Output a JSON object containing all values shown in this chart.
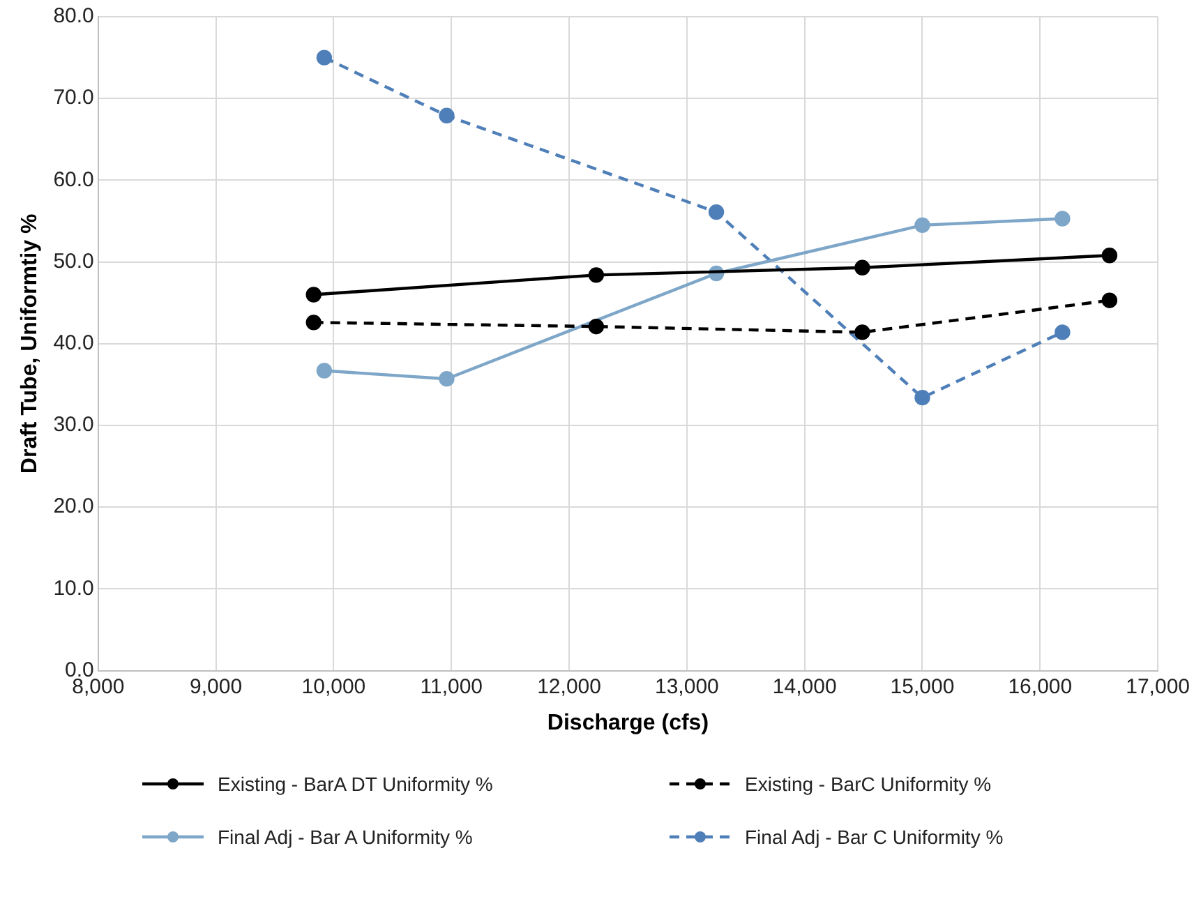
{
  "chart_data": {
    "type": "line",
    "xlabel": "Discharge (cfs)",
    "ylabel": "Draft Tube, Uniformtiy %",
    "xlim": [
      8000,
      17000
    ],
    "xticks": [
      {
        "value": 8000,
        "label": "8,000"
      },
      {
        "value": 9000,
        "label": "9,000"
      },
      {
        "value": 10000,
        "label": "10,000"
      },
      {
        "value": 11000,
        "label": "11,000"
      },
      {
        "value": 12000,
        "label": "12,000"
      },
      {
        "value": 13000,
        "label": "13,000"
      },
      {
        "value": 14000,
        "label": "14,000"
      },
      {
        "value": 15000,
        "label": "15,000"
      },
      {
        "value": 16000,
        "label": "16,000"
      },
      {
        "value": 17000,
        "label": "17,000"
      }
    ],
    "ylim": [
      0,
      80
    ],
    "yticks": [
      {
        "value": 0,
        "label": "0.0"
      },
      {
        "value": 10,
        "label": "10.0"
      },
      {
        "value": 20,
        "label": "20.0"
      },
      {
        "value": 30,
        "label": "30.0"
      },
      {
        "value": 40,
        "label": "40.0"
      },
      {
        "value": 50,
        "label": "50.0"
      },
      {
        "value": 60,
        "label": "60.0"
      },
      {
        "value": 70,
        "label": "70.0"
      },
      {
        "value": 80,
        "label": "80.0"
      }
    ],
    "grid": true,
    "legend": "bottom",
    "marker": "circle",
    "series": [
      {
        "name": "Existing - BarA DT Uniformity %",
        "color": "#000000",
        "line_style": "solid",
        "x": [
          9830,
          12230,
          14490,
          16590
        ],
        "values": [
          46.0,
          48.4,
          49.3,
          50.8
        ]
      },
      {
        "name": "Existing - BarC Uniformity %",
        "color": "#000000",
        "line_style": "dashed",
        "x": [
          9830,
          12230,
          14490,
          16590
        ],
        "values": [
          42.6,
          42.1,
          41.4,
          45.3
        ]
      },
      {
        "name": "Final Adj - Bar A Uniformity %",
        "color": "#7ea6c8",
        "line_style": "solid",
        "x": [
          9920,
          10960,
          13250,
          15000,
          16190
        ],
        "values": [
          36.7,
          35.7,
          48.6,
          54.5,
          55.3
        ]
      },
      {
        "name": "Final Adj - Bar C Uniformity %",
        "color": "#4f7fb8",
        "line_style": "dashed",
        "x": [
          9920,
          10960,
          13250,
          15000,
          16190
        ],
        "values": [
          75.0,
          67.9,
          56.1,
          33.4,
          41.4
        ]
      }
    ]
  }
}
